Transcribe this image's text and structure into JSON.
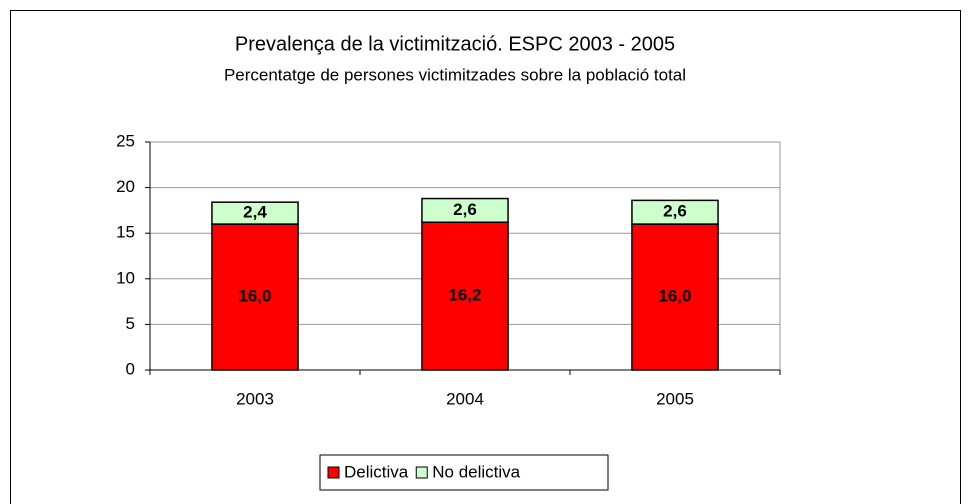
{
  "chart_data": {
    "type": "stacked_bar",
    "title": "Prevalença de la victimització. ESPC 2003 - 2005",
    "subtitle": "Percentatge de persones victimitzades sobre la població total",
    "categories": [
      "2003",
      "2004",
      "2005"
    ],
    "series": [
      {
        "name": "Delictiva",
        "color": "#ff0000",
        "values": [
          16.0,
          16.2,
          16.0
        ],
        "value_labels": [
          "16,0",
          "16,2",
          "16,0"
        ]
      },
      {
        "name": "No delictiva",
        "color": "#ccffcc",
        "values": [
          2.4,
          2.6,
          2.6
        ],
        "value_labels": [
          "2,4",
          "2,6",
          "2,6"
        ]
      }
    ],
    "ylim": [
      0,
      25
    ],
    "yticks": [
      0,
      5,
      10,
      15,
      20,
      25
    ],
    "grid": true,
    "legend": "bottom"
  }
}
